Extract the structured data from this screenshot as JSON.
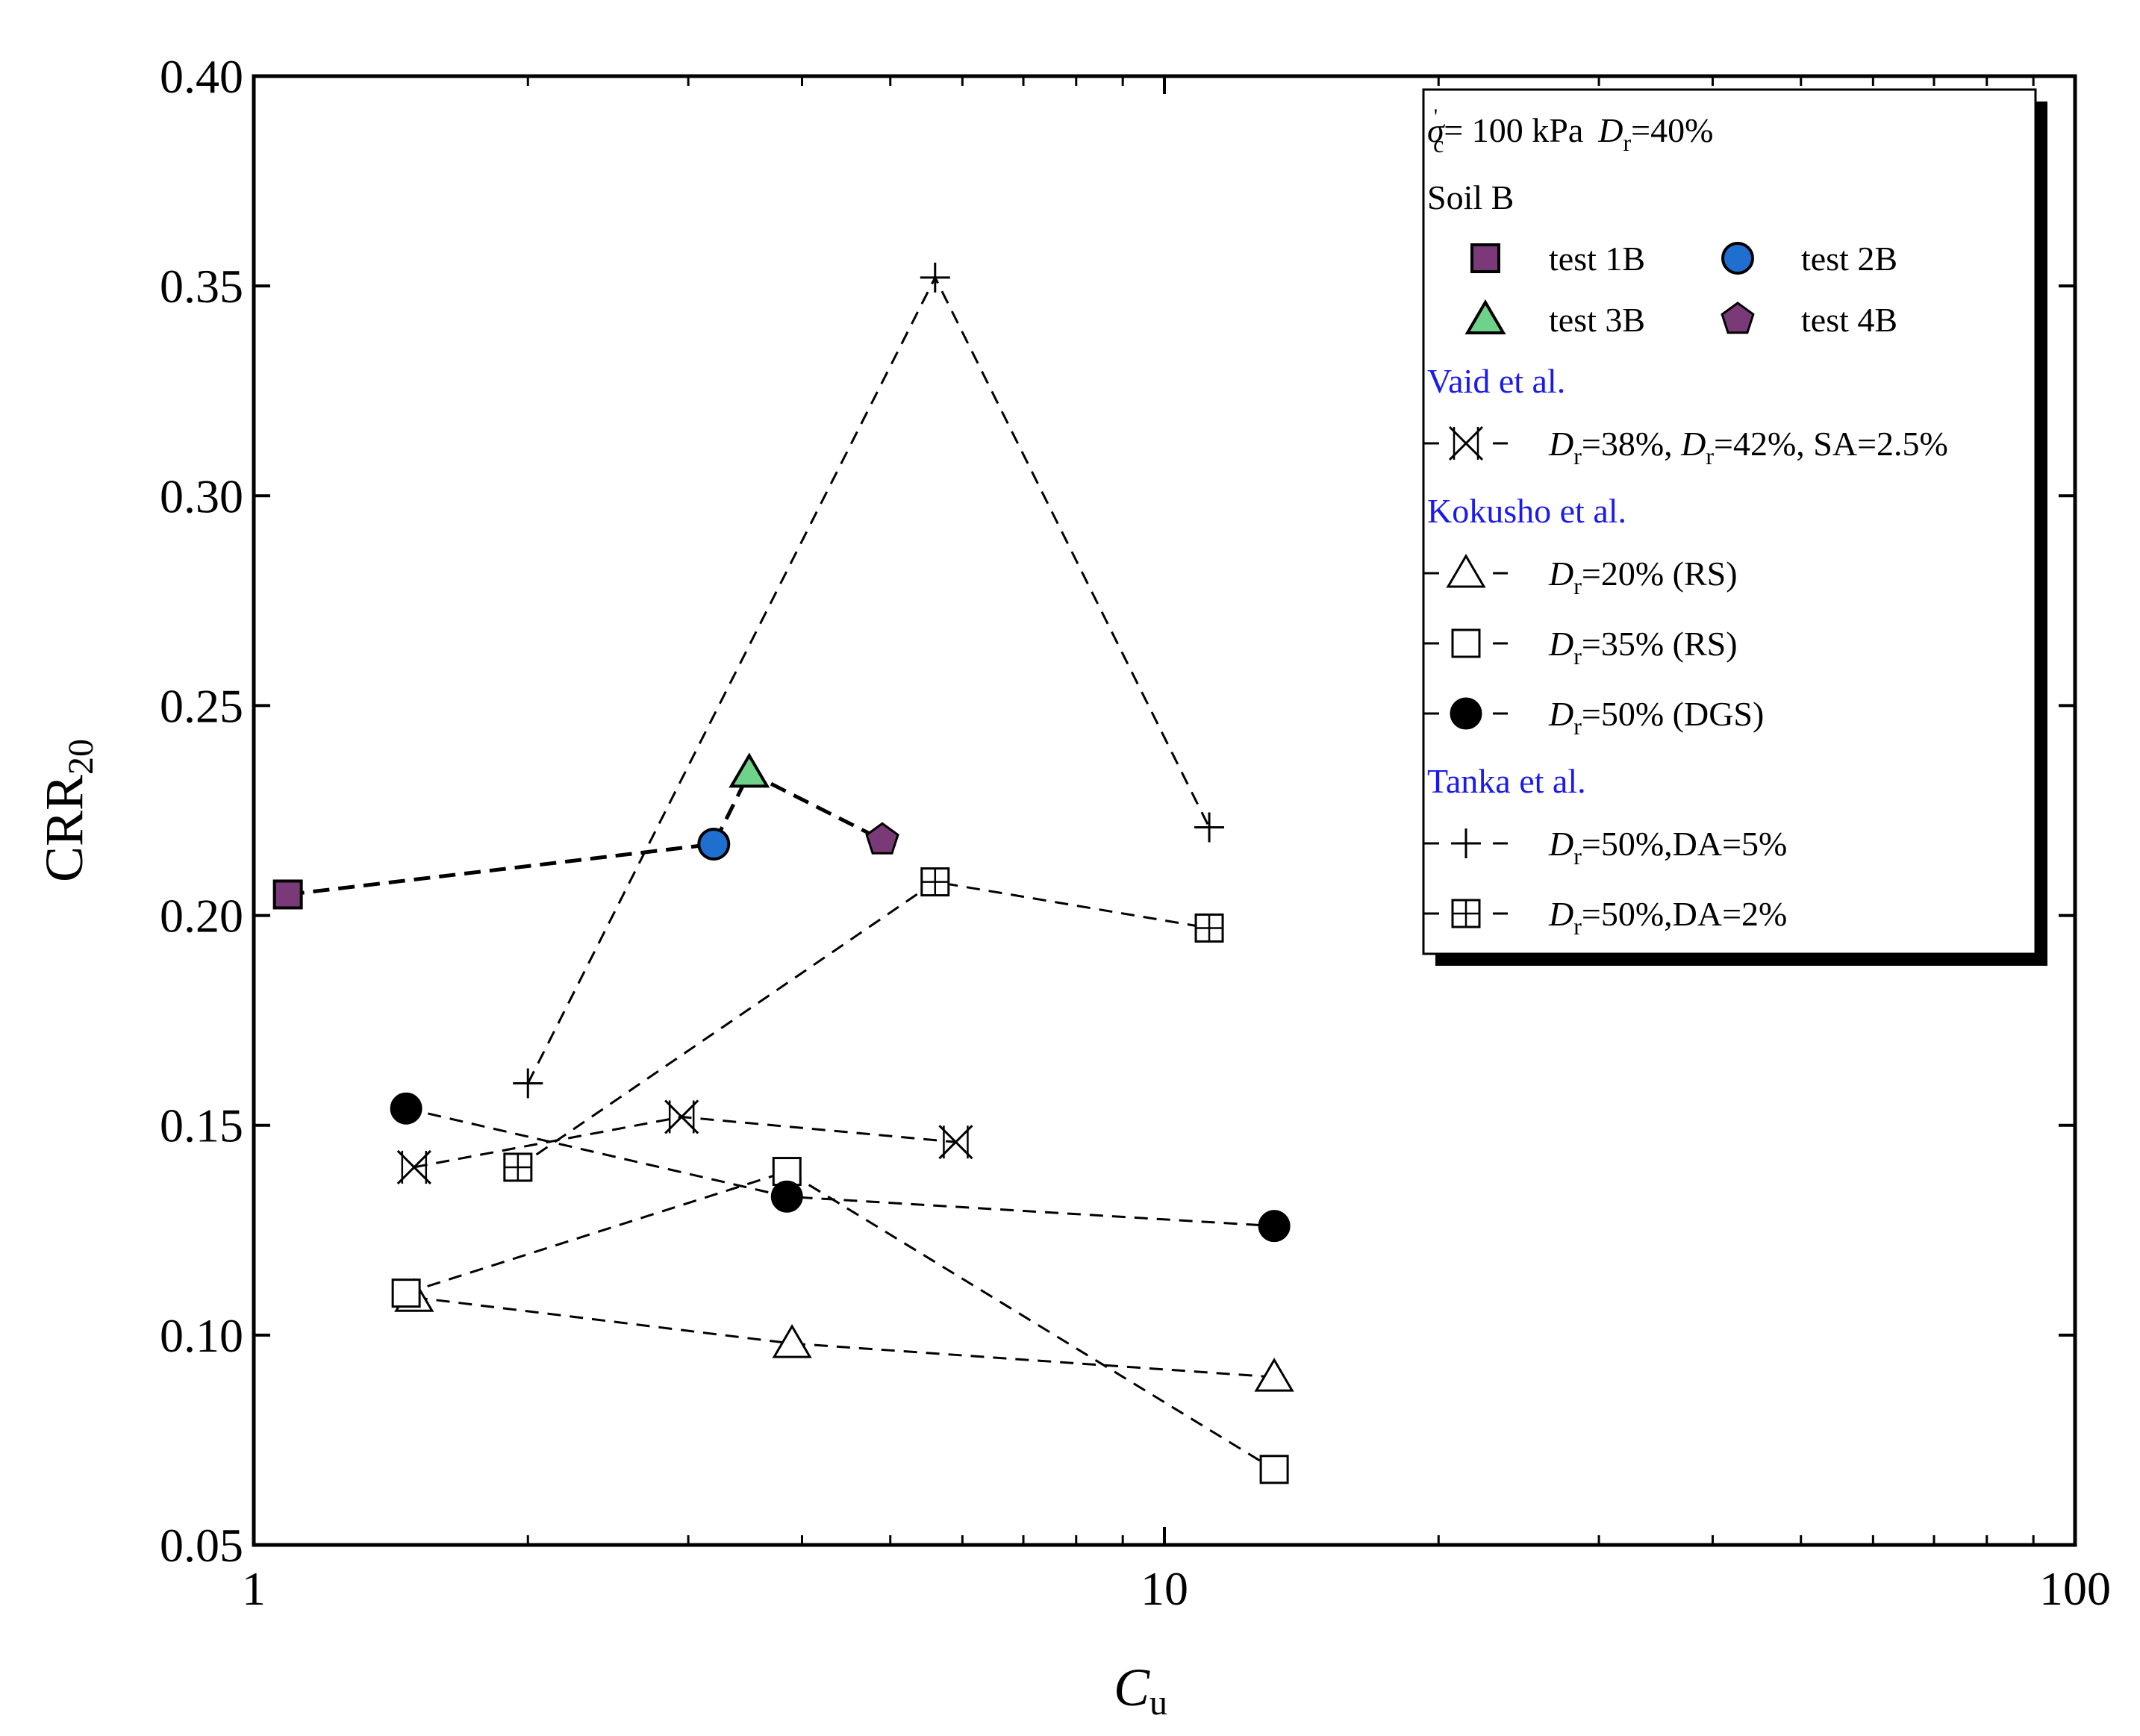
{
  "chart_data": {
    "type": "scatter",
    "xscale": "log",
    "xlim": [
      1,
      100
    ],
    "ylim": [
      0.05,
      0.4
    ],
    "xlabel": "C",
    "xlabel_sub": "u",
    "ylabel": "CRR",
    "ylabel_sub": "20",
    "x_ticks": [
      1,
      10,
      100
    ],
    "x_tick_labels": [
      "1",
      "10",
      "100"
    ],
    "y_ticks": [
      0.05,
      0.1,
      0.15,
      0.2,
      0.25,
      0.3,
      0.35,
      0.4
    ],
    "y_tick_labels": [
      "0.05",
      "0.10",
      "0.15",
      "0.20",
      "0.25",
      "0.30",
      "0.35",
      "0.40"
    ],
    "grid": false,
    "legend_position": "top-right",
    "legend_header": {
      "sigma": "σ",
      "sigma_sup": "'",
      "sigma_sub": "c",
      "pressure_text": "= 100 kPa",
      "dr_symbol": "D",
      "dr_sub": "r",
      "dr_value": "=40%"
    },
    "groups": [
      {
        "name": "Soil B",
        "color": "#000000"
      },
      {
        "name": "Vaid et al.",
        "color": "#1a1aee"
      },
      {
        "name": "Kokusho et al.",
        "color": "#1a1aee"
      },
      {
        "name": "Tanka et al.",
        "color": "#1a1aee"
      }
    ],
    "soil_b_line": [
      {
        "x": 1.09,
        "y": 0.205
      },
      {
        "x": 3.2,
        "y": 0.217
      },
      {
        "x": 3.5,
        "y": 0.234
      },
      {
        "x": 4.9,
        "y": 0.218
      }
    ],
    "series": [
      {
        "name": "test 1B",
        "group": "Soil B",
        "marker": "square",
        "fill": "#7a3a78",
        "points": [
          {
            "x": 1.09,
            "y": 0.205
          }
        ]
      },
      {
        "name": "test 2B",
        "group": "Soil B",
        "marker": "circle",
        "fill": "#1f6fd0",
        "points": [
          {
            "x": 3.2,
            "y": 0.217
          }
        ]
      },
      {
        "name": "test 3B",
        "group": "Soil B",
        "marker": "triangle",
        "fill": "#6fd28a",
        "points": [
          {
            "x": 3.5,
            "y": 0.234
          }
        ]
      },
      {
        "name": "test 4B",
        "group": "Soil B",
        "marker": "pentagon",
        "fill": "#7a3a78",
        "points": [
          {
            "x": 4.9,
            "y": 0.218
          }
        ]
      },
      {
        "name": "D",
        "sub": "r",
        "rest": "=38%, ",
        "name2": "D",
        "sub2": "r",
        "rest2": "=42%, SA=2.5%",
        "group": "Vaid et al.",
        "marker": "xbox",
        "fill": "none",
        "line": "dashed",
        "points": [
          {
            "x": 1.5,
            "y": 0.14
          },
          {
            "x": 2.95,
            "y": 0.152
          },
          {
            "x": 5.9,
            "y": 0.146
          }
        ]
      },
      {
        "name": "D",
        "sub": "r",
        "rest": "=20% (RS)",
        "group": "Kokusho et al.",
        "marker": "triangle-open",
        "fill": "none",
        "line": "dashed",
        "points": [
          {
            "x": 1.5,
            "y": 0.109
          },
          {
            "x": 3.9,
            "y": 0.098
          },
          {
            "x": 13.2,
            "y": 0.09
          }
        ]
      },
      {
        "name": "D",
        "sub": "r",
        "rest": "=35% (RS)",
        "group": "Kokusho et al.",
        "marker": "square-open",
        "fill": "none",
        "line": "dashed",
        "points": [
          {
            "x": 1.47,
            "y": 0.11
          },
          {
            "x": 3.85,
            "y": 0.139
          },
          {
            "x": 13.2,
            "y": 0.068
          }
        ]
      },
      {
        "name": "D",
        "sub": "r",
        "rest": "=50% (DGS)",
        "group": "Kokusho et al.",
        "marker": "circle-filled",
        "fill": "#000000",
        "line": "dashed",
        "points": [
          {
            "x": 1.47,
            "y": 0.154
          },
          {
            "x": 3.85,
            "y": 0.133
          },
          {
            "x": 13.2,
            "y": 0.126
          }
        ]
      },
      {
        "name": "D",
        "sub": "r",
        "rest": "=50%,DA=5%",
        "group": "Tanka et al.",
        "marker": "plus",
        "fill": "none",
        "line": "dashed",
        "points": [
          {
            "x": 2.0,
            "y": 0.16
          },
          {
            "x": 5.6,
            "y": 0.352
          },
          {
            "x": 11.2,
            "y": 0.221
          }
        ]
      },
      {
        "name": "D",
        "sub": "r",
        "rest": "=50%,DA=2%",
        "group": "Tanka et al.",
        "marker": "square-plus",
        "fill": "none",
        "line": "dashed",
        "points": [
          {
            "x": 1.95,
            "y": 0.14
          },
          {
            "x": 5.6,
            "y": 0.208
          },
          {
            "x": 11.2,
            "y": 0.197
          }
        ]
      }
    ]
  }
}
